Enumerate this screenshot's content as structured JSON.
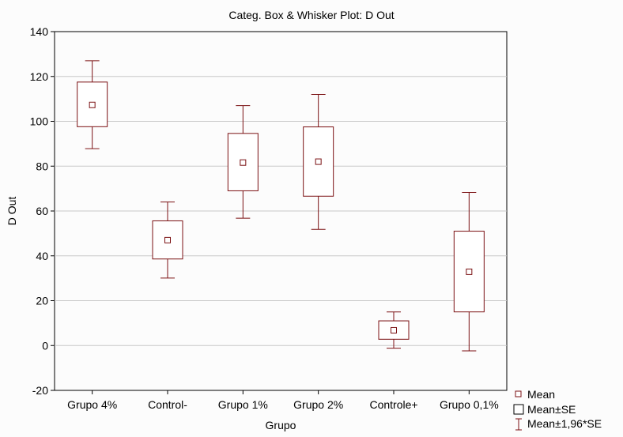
{
  "chart_data": {
    "type": "box",
    "title": "Categ. Box & Whisker Plot: D Out",
    "xlabel": "Grupo",
    "ylabel": "D Out",
    "ylim": [
      -20,
      140
    ],
    "yticks": [
      -20,
      0,
      20,
      40,
      60,
      80,
      100,
      120,
      140
    ],
    "grid": "horizontal",
    "categories": [
      "Grupo 4%",
      "Control-",
      "Grupo 1%",
      "Grupo 2%",
      "Controle+",
      "Grupo 0,1%"
    ],
    "series": [
      {
        "mean": [
          107.3,
          47.0,
          81.6,
          82.0,
          6.8,
          32.9
        ],
        "se_low": [
          97.6,
          38.6,
          69.0,
          66.6,
          2.8,
          15.0
        ],
        "se_high": [
          117.5,
          55.6,
          94.6,
          97.5,
          11.0,
          51.0
        ],
        "ci_low": [
          87.8,
          30.1,
          56.8,
          51.8,
          -1.2,
          -2.4
        ],
        "ci_high": [
          127.0,
          64.0,
          107.0,
          112.0,
          15.0,
          68.3
        ]
      }
    ],
    "legend": {
      "position": "bottom-right",
      "items": [
        "Mean",
        "Mean±SE",
        "Mean±1,96*SE"
      ]
    },
    "colors": {
      "box": "#7b1113",
      "grid": "#c8c8c8",
      "background": "#fcfcfc"
    }
  }
}
